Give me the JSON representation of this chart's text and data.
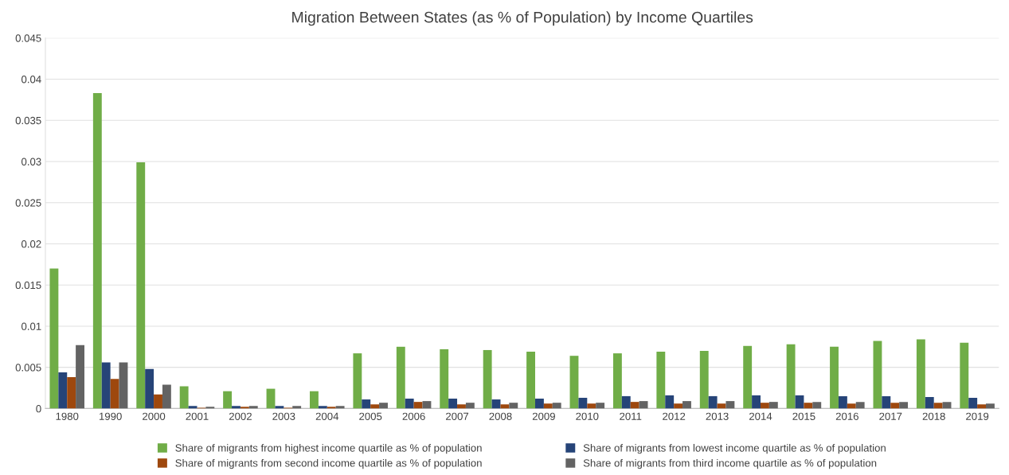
{
  "chart_data": {
    "type": "bar",
    "title": "Migration Between States (as % of Population) by Income Quartiles",
    "categories": [
      "1980",
      "1990",
      "2000",
      "2001",
      "2002",
      "2003",
      "2004",
      "2005",
      "2006",
      "2007",
      "2008",
      "2009",
      "2010",
      "2011",
      "2012",
      "2013",
      "2014",
      "2015",
      "2016",
      "2017",
      "2018",
      "2019"
    ],
    "series": [
      {
        "name": "Share of migrants from highest income quartile as % of population",
        "color": "#70ad47",
        "values": [
          0.017,
          0.0383,
          0.0299,
          0.0027,
          0.0021,
          0.0024,
          0.0021,
          0.0067,
          0.0075,
          0.0072,
          0.0071,
          0.0069,
          0.0064,
          0.0067,
          0.0069,
          0.007,
          0.0076,
          0.0078,
          0.0075,
          0.0082,
          0.0084,
          0.008
        ]
      },
      {
        "name": "Share of migrants from lowest income quartile as % of population",
        "color": "#264478",
        "values": [
          0.0044,
          0.0056,
          0.0048,
          0.0003,
          0.0003,
          0.0003,
          0.0003,
          0.0011,
          0.0012,
          0.0012,
          0.0011,
          0.0012,
          0.0013,
          0.0015,
          0.0016,
          0.0015,
          0.0016,
          0.0016,
          0.0015,
          0.0015,
          0.0014,
          0.0013
        ]
      },
      {
        "name": "Share of migrants from second income quartile as % of population",
        "color": "#9e480e",
        "values": [
          0.0038,
          0.0036,
          0.0017,
          0.0001,
          0.0002,
          0.0001,
          0.0002,
          0.0005,
          0.0008,
          0.0005,
          0.0005,
          0.0006,
          0.0006,
          0.0008,
          0.0006,
          0.0006,
          0.0007,
          0.0007,
          0.0006,
          0.0007,
          0.0007,
          0.0005
        ]
      },
      {
        "name": "Share of migrants from third income quartile as % of population",
        "color": "#636363",
        "values": [
          0.0077,
          0.0056,
          0.0029,
          0.0002,
          0.0003,
          0.0003,
          0.0003,
          0.0007,
          0.0009,
          0.0007,
          0.0007,
          0.0007,
          0.0007,
          0.0009,
          0.0009,
          0.0009,
          0.0008,
          0.0008,
          0.0008,
          0.0008,
          0.0008,
          0.0006
        ]
      }
    ],
    "ylim": [
      0,
      0.045
    ],
    "yticks": [
      0,
      0.005,
      0.01,
      0.015,
      0.02,
      0.025,
      0.03,
      0.035,
      0.04,
      0.045
    ],
    "grid": "y",
    "legend": "bottom"
  }
}
